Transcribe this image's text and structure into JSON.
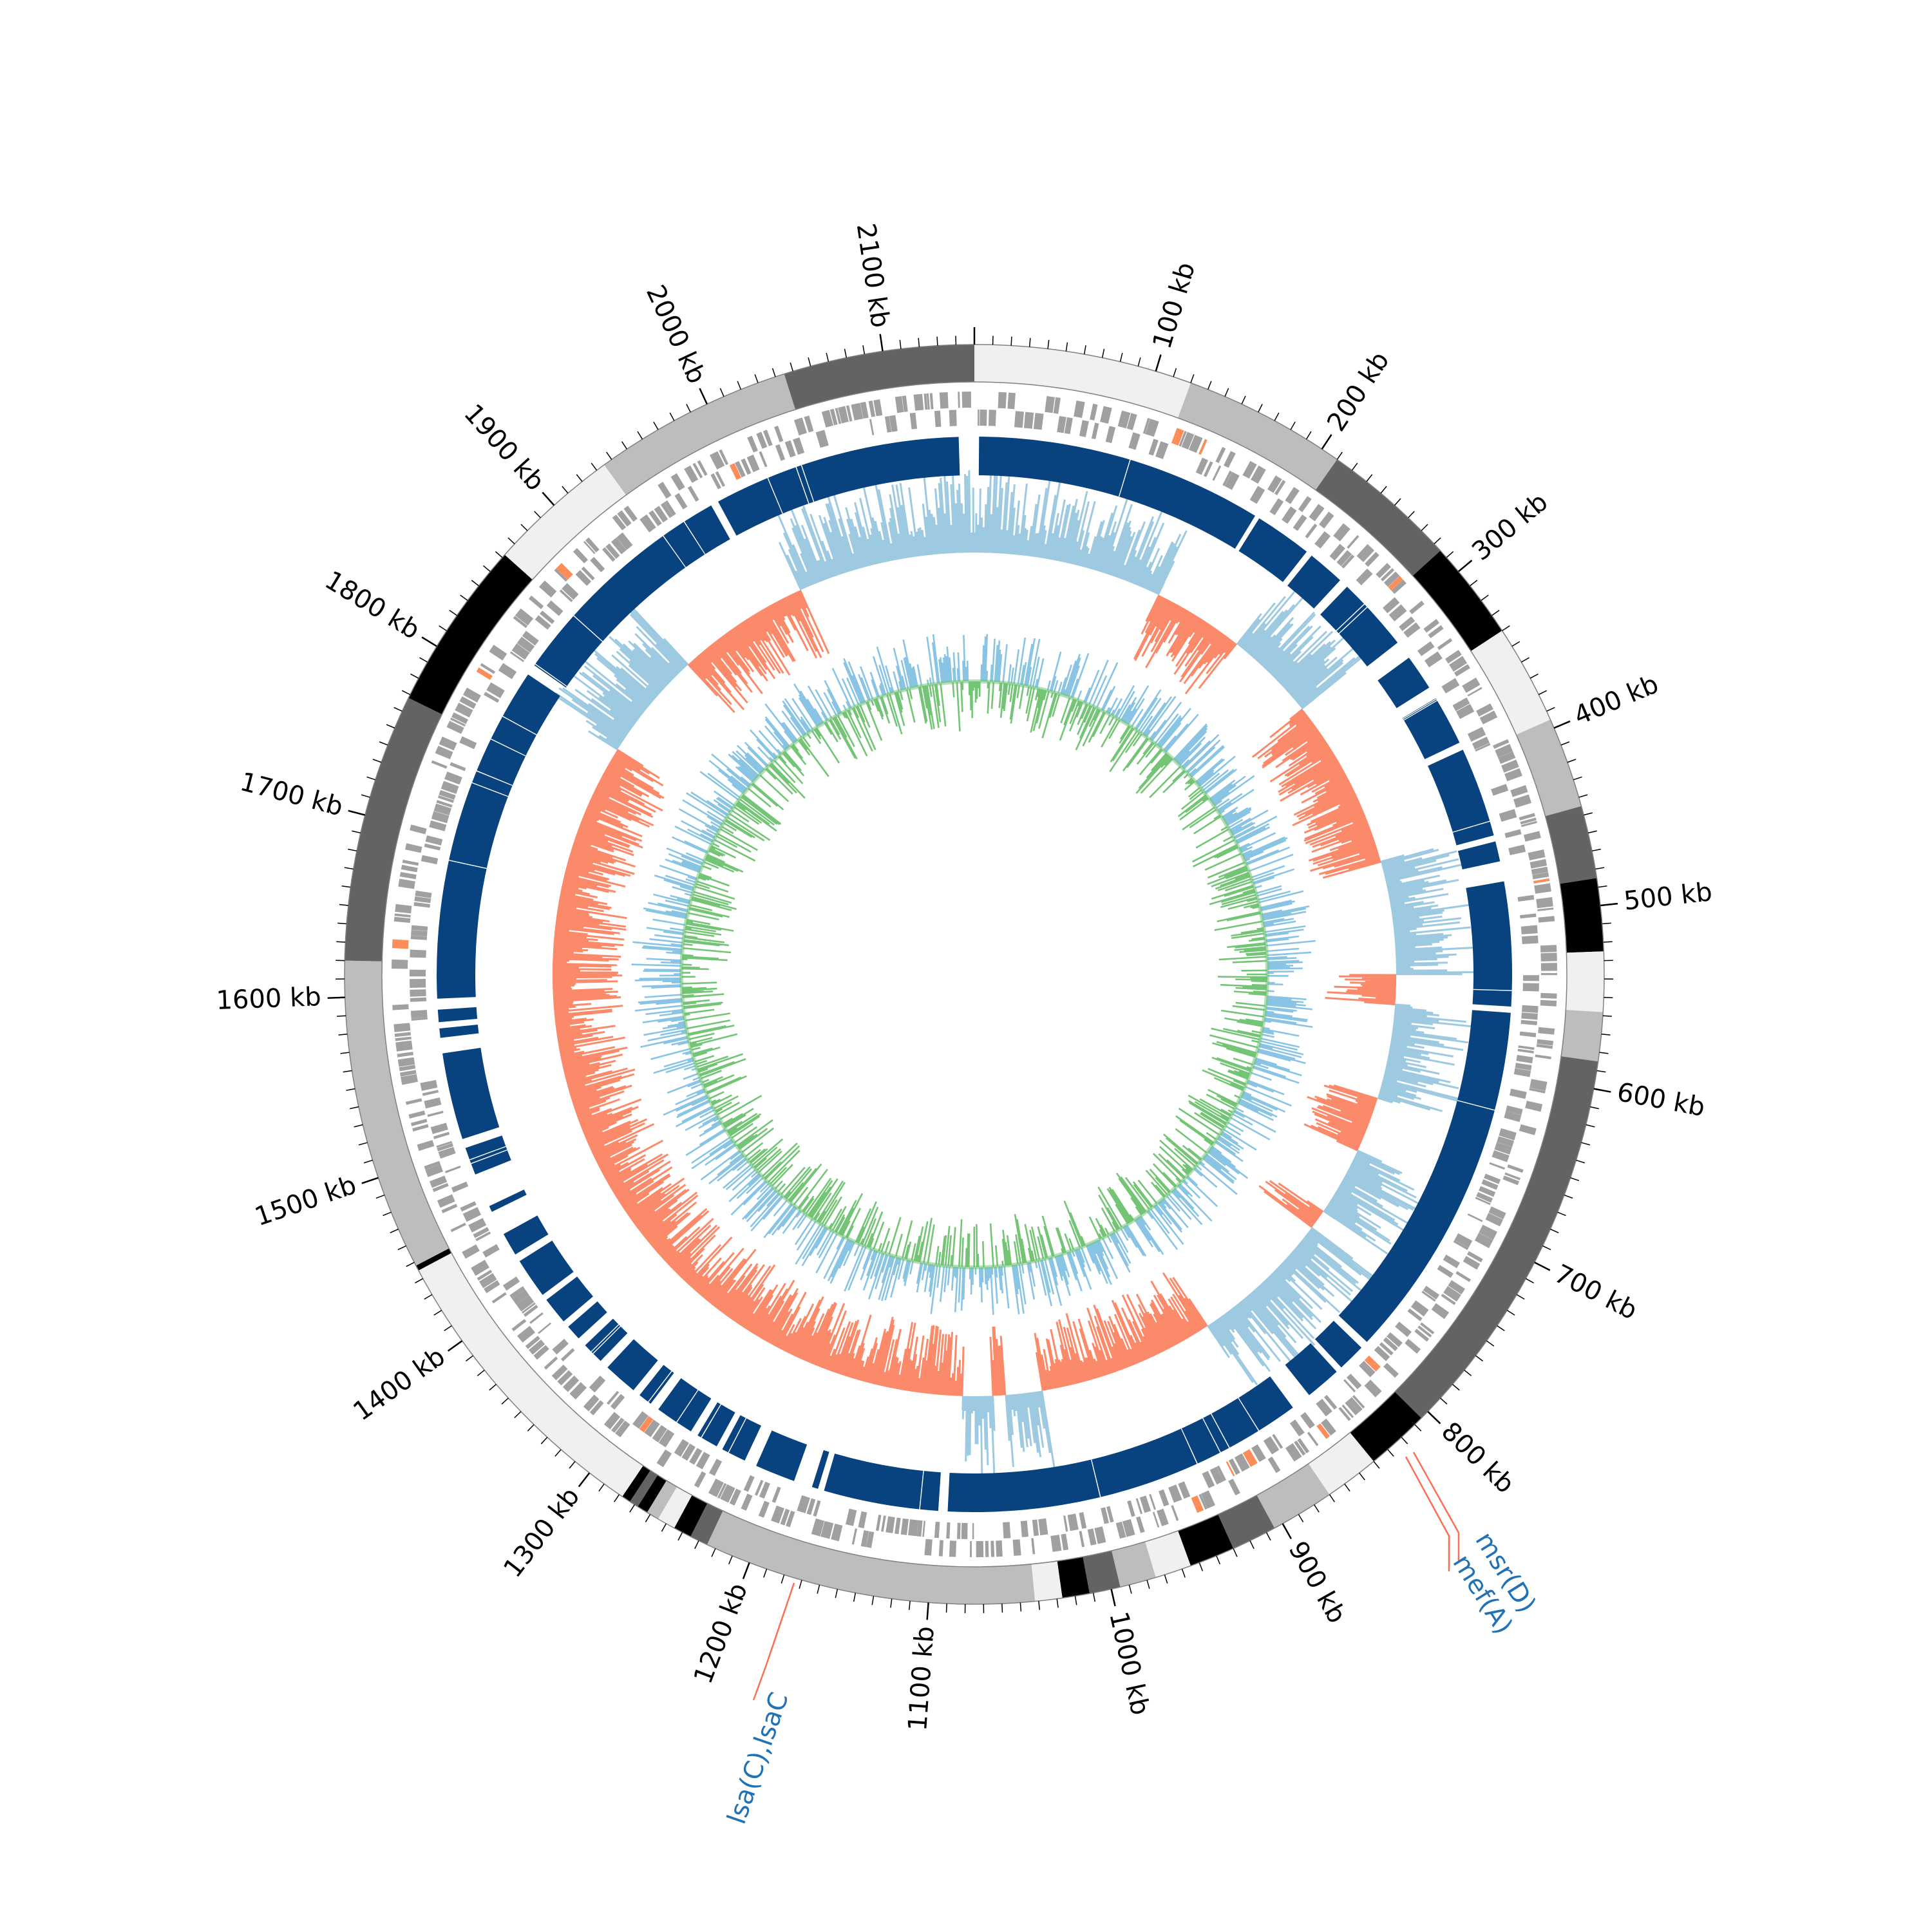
{
  "genome": {
    "length_kb": 2150
  },
  "ticks": [
    {
      "kb": 100,
      "label": "100 kb"
    },
    {
      "kb": 200,
      "label": "200 kb"
    },
    {
      "kb": 300,
      "label": "300 kb"
    },
    {
      "kb": 400,
      "label": "400 kb"
    },
    {
      "kb": 500,
      "label": "500 kb"
    },
    {
      "kb": 600,
      "label": "600 kb"
    },
    {
      "kb": 700,
      "label": "700 kb"
    },
    {
      "kb": 800,
      "label": "800 kb"
    },
    {
      "kb": 900,
      "label": "900 kb"
    },
    {
      "kb": 1000,
      "label": "1000 kb"
    },
    {
      "kb": 1100,
      "label": "1100 kb"
    },
    {
      "kb": 1200,
      "label": "1200 kb"
    },
    {
      "kb": 1300,
      "label": "1300 kb"
    },
    {
      "kb": 1400,
      "label": "1400 kb"
    },
    {
      "kb": 1500,
      "label": "1500 kb"
    },
    {
      "kb": 1600,
      "label": "1600 kb"
    },
    {
      "kb": 1700,
      "label": "1700 kb"
    },
    {
      "kb": 1800,
      "label": "1800 kb"
    },
    {
      "kb": 1900,
      "label": "1900 kb"
    },
    {
      "kb": 2000,
      "label": "2000 kb"
    },
    {
      "kb": 2100,
      "label": "2100 kb"
    }
  ],
  "contigs": [
    {
      "start": 0,
      "end": 120,
      "color": "#f0f0f0"
    },
    {
      "start": 120,
      "end": 210,
      "color": "#bdbdbd"
    },
    {
      "start": 210,
      "end": 285,
      "color": "#636363"
    },
    {
      "start": 285,
      "end": 340,
      "color": "#000000"
    },
    {
      "start": 340,
      "end": 395,
      "color": "#f0f0f0"
    },
    {
      "start": 395,
      "end": 445,
      "color": "#bdbdbd"
    },
    {
      "start": 445,
      "end": 485,
      "color": "#636363"
    },
    {
      "start": 485,
      "end": 525,
      "color": "#000000"
    },
    {
      "start": 525,
      "end": 558,
      "color": "#f0f0f0"
    },
    {
      "start": 558,
      "end": 585,
      "color": "#bdbdbd"
    },
    {
      "start": 585,
      "end": 805,
      "color": "#636363"
    },
    {
      "start": 805,
      "end": 840,
      "color": "#000000"
    },
    {
      "start": 840,
      "end": 870,
      "color": "#f0f0f0"
    },
    {
      "start": 870,
      "end": 905,
      "color": "#bdbdbd"
    },
    {
      "start": 905,
      "end": 930,
      "color": "#636363"
    },
    {
      "start": 930,
      "end": 955,
      "color": "#000000"
    },
    {
      "start": 955,
      "end": 975,
      "color": "#f0f0f0"
    },
    {
      "start": 975,
      "end": 995,
      "color": "#bdbdbd"
    },
    {
      "start": 995,
      "end": 1012,
      "color": "#636363"
    },
    {
      "start": 1012,
      "end": 1027,
      "color": "#000000"
    },
    {
      "start": 1027,
      "end": 1042,
      "color": "#f0f0f0"
    },
    {
      "start": 1042,
      "end": 1225,
      "color": "#bdbdbd"
    },
    {
      "start": 1225,
      "end": 1235,
      "color": "#636363"
    },
    {
      "start": 1235,
      "end": 1245,
      "color": "#000000"
    },
    {
      "start": 1245,
      "end": 1255,
      "color": "#f0f0f0"
    },
    {
      "start": 1255,
      "end": 1262,
      "color": "#bdbdbd"
    },
    {
      "start": 1262,
      "end": 1268,
      "color": "#000000"
    },
    {
      "start": 1268,
      "end": 1273,
      "color": "#636363"
    },
    {
      "start": 1273,
      "end": 1278,
      "color": "#000000"
    },
    {
      "start": 1278,
      "end": 1282,
      "color": "#f0f0f0"
    },
    {
      "start": 1282,
      "end": 1445,
      "color": "#f0f0f0"
    },
    {
      "start": 1445,
      "end": 1448,
      "color": "#000000"
    },
    {
      "start": 1448,
      "end": 1620,
      "color": "#bdbdbd"
    },
    {
      "start": 1620,
      "end": 1768,
      "color": "#636363"
    },
    {
      "start": 1768,
      "end": 1862,
      "color": "#000000"
    },
    {
      "start": 1862,
      "end": 1935,
      "color": "#f0f0f0"
    },
    {
      "start": 1935,
      "end": 2045,
      "color": "#bdbdbd"
    },
    {
      "start": 2045,
      "end": 2150,
      "color": "#636363"
    }
  ],
  "blast_segments": [
    {
      "start": 3,
      "end": 188
    },
    {
      "start": 191,
      "end": 228
    },
    {
      "start": 232,
      "end": 256
    },
    {
      "start": 262,
      "end": 310
    },
    {
      "start": 322,
      "end": 345
    },
    {
      "start": 353,
      "end": 385
    },
    {
      "start": 390,
      "end": 448
    },
    {
      "start": 452,
      "end": 465
    },
    {
      "start": 478,
      "end": 558
    },
    {
      "start": 562,
      "end": 795
    },
    {
      "start": 800,
      "end": 818
    },
    {
      "start": 822,
      "end": 845
    },
    {
      "start": 858,
      "end": 1092
    },
    {
      "start": 1098,
      "end": 1172
    },
    {
      "start": 1176,
      "end": 1180
    },
    {
      "start": 1192,
      "end": 1218
    },
    {
      "start": 1226,
      "end": 1242
    },
    {
      "start": 1246,
      "end": 1260
    },
    {
      "start": 1265,
      "end": 1290
    },
    {
      "start": 1296,
      "end": 1305
    },
    {
      "start": 1310,
      "end": 1332
    },
    {
      "start": 1338,
      "end": 1352
    },
    {
      "start": 1358,
      "end": 1368
    },
    {
      "start": 1372,
      "end": 1390
    },
    {
      "start": 1394,
      "end": 1420
    },
    {
      "start": 1425,
      "end": 1440
    },
    {
      "start": 1456,
      "end": 1460
    },
    {
      "start": 1482,
      "end": 1500
    },
    {
      "start": 1506,
      "end": 1562
    },
    {
      "start": 1572,
      "end": 1578
    },
    {
      "start": 1582,
      "end": 1590
    },
    {
      "start": 1597,
      "end": 1815
    },
    {
      "start": 1822,
      "end": 1975
    },
    {
      "start": 1980,
      "end": 2140
    }
  ],
  "gc_content_sections": [
    {
      "start": 0,
      "end": 155,
      "sign": "pos"
    },
    {
      "start": 155,
      "end": 230,
      "sign": "neg"
    },
    {
      "start": 230,
      "end": 305,
      "sign": "pos"
    },
    {
      "start": 305,
      "end": 445,
      "sign": "neg"
    },
    {
      "start": 445,
      "end": 538,
      "sign": "pos"
    },
    {
      "start": 538,
      "end": 562,
      "sign": "neg"
    },
    {
      "start": 562,
      "end": 640,
      "sign": "pos"
    },
    {
      "start": 640,
      "end": 685,
      "sign": "neg"
    },
    {
      "start": 685,
      "end": 742,
      "sign": "pos"
    },
    {
      "start": 742,
      "end": 758,
      "sign": "neg"
    },
    {
      "start": 758,
      "end": 875,
      "sign": "pos"
    },
    {
      "start": 875,
      "end": 1020,
      "sign": "neg"
    },
    {
      "start": 1020,
      "end": 1050,
      "sign": "pos"
    },
    {
      "start": 1050,
      "end": 1060,
      "sign": "neg"
    },
    {
      "start": 1060,
      "end": 1085,
      "sign": "pos"
    },
    {
      "start": 1085,
      "end": 1805,
      "sign": "neg"
    },
    {
      "start": 1805,
      "end": 1895,
      "sign": "pos"
    },
    {
      "start": 1895,
      "end": 2005,
      "sign": "neg"
    },
    {
      "start": 2005,
      "end": 2150,
      "sign": "pos"
    }
  ],
  "colors": {
    "contig_border": "#808080",
    "cds": "#a0a0a0",
    "cds_highlight": "#fc8d59",
    "blast": "#08427f",
    "blast_light": "#2171b5",
    "gc_pos": "#9ecae1",
    "gc_neg": "#fb8a6a",
    "skew_pos": "#89c4e4",
    "skew_neg": "#74c476",
    "tick": "#000000",
    "gene_label": "#2171b5",
    "gene_line": "#fc6f51"
  },
  "gene_annotations": [
    {
      "id": "msrD",
      "text": "msr(D)",
      "kb": 838
    },
    {
      "id": "mefA",
      "text": "mef(A)",
      "kb": 838
    },
    {
      "id": "lsaC",
      "text": "lsa(C),lsaC",
      "kb": 1207
    }
  ]
}
